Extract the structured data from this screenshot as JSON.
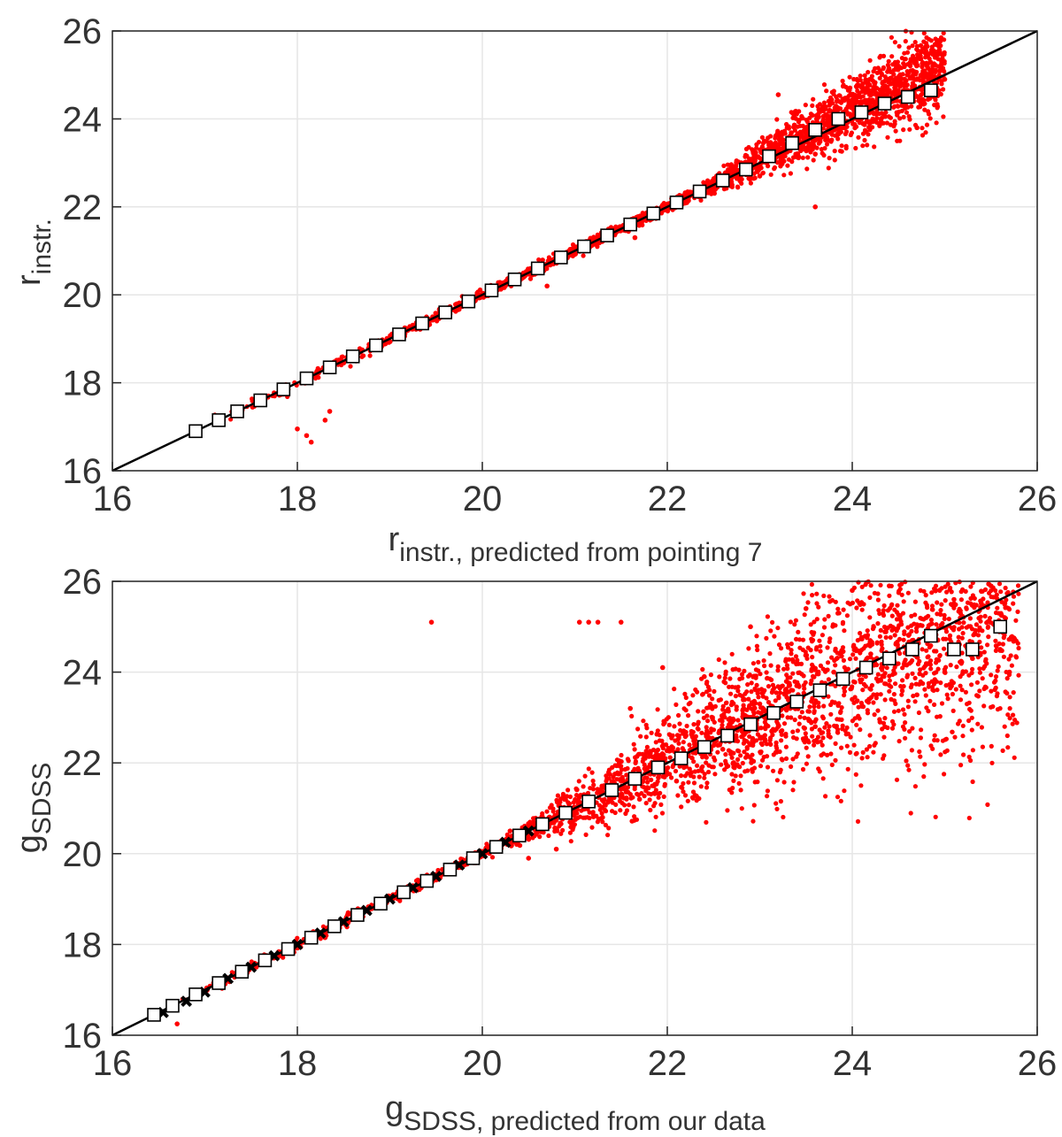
{
  "chart_data": [
    {
      "type": "scatter",
      "xlabel_main": "r",
      "xlabel_sub": "instr., predicted from pointing 7",
      "ylabel_main": "r",
      "ylabel_sub": "instr.",
      "xlim": [
        16,
        26
      ],
      "ylim": [
        16,
        26
      ],
      "xticks": [
        16,
        18,
        20,
        22,
        24,
        26
      ],
      "yticks": [
        16,
        18,
        20,
        22,
        24,
        26
      ],
      "grid": true,
      "reference_line": {
        "from": [
          16,
          16
        ],
        "to": [
          26,
          26
        ],
        "color": "#000000"
      },
      "series": [
        {
          "marker": "dot",
          "color": "#ff0000",
          "points": [
            [
              16.9,
              16.9
            ],
            [
              17.2,
              17.15
            ],
            [
              17.4,
              17.35
            ],
            [
              17.65,
              17.6
            ],
            [
              17.9,
              17.85
            ],
            [
              18.0,
              16.95
            ],
            [
              18.1,
              16.8
            ],
            [
              18.15,
              16.65
            ],
            [
              18.35,
              17.35
            ],
            [
              18.3,
              17.15
            ],
            [
              18.2,
              18.15
            ],
            [
              18.5,
              18.45
            ],
            [
              18.8,
              18.8
            ],
            [
              19.1,
              19.15
            ],
            [
              19.35,
              19.3
            ],
            [
              19.55,
              19.55
            ],
            [
              19.8,
              19.85
            ],
            [
              20.15,
              20.1
            ],
            [
              20.3,
              20.4
            ],
            [
              20.6,
              20.65
            ],
            [
              20.7,
              20.2
            ],
            [
              20.85,
              20.9
            ],
            [
              21.1,
              21.1
            ],
            [
              21.3,
              21.4
            ],
            [
              21.55,
              21.6
            ],
            [
              21.65,
              21.3
            ],
            [
              21.8,
              21.85
            ],
            [
              22.1,
              22.1
            ],
            [
              22.3,
              22.4
            ],
            [
              22.5,
              22.6
            ],
            [
              22.7,
              22.5
            ],
            [
              22.8,
              23.0
            ],
            [
              23.0,
              22.7
            ],
            [
              23.1,
              23.2
            ],
            [
              23.2,
              24.55
            ],
            [
              23.4,
              23.4
            ],
            [
              23.5,
              23.7
            ],
            [
              23.6,
              23.2
            ],
            [
              23.6,
              22.0
            ],
            [
              23.7,
              23.9
            ],
            [
              23.9,
              23.8
            ],
            [
              24.0,
              24.4
            ],
            [
              24.1,
              24.0
            ],
            [
              24.2,
              24.9
            ],
            [
              24.3,
              23.9
            ],
            [
              24.4,
              24.3
            ],
            [
              24.5,
              25.2
            ],
            [
              24.6,
              24.4
            ],
            [
              24.7,
              23.8
            ],
            [
              24.8,
              24.6
            ],
            [
              25.0,
              24.9
            ]
          ]
        },
        {
          "marker": "square",
          "points": [
            [
              16.9,
              16.9
            ],
            [
              17.15,
              17.15
            ],
            [
              17.35,
              17.35
            ],
            [
              17.6,
              17.6
            ],
            [
              17.85,
              17.85
            ],
            [
              18.1,
              18.1
            ],
            [
              18.35,
              18.35
            ],
            [
              18.6,
              18.6
            ],
            [
              18.85,
              18.85
            ],
            [
              19.1,
              19.1
            ],
            [
              19.35,
              19.35
            ],
            [
              19.6,
              19.6
            ],
            [
              19.85,
              19.85
            ],
            [
              20.1,
              20.1
            ],
            [
              20.35,
              20.35
            ],
            [
              20.6,
              20.6
            ],
            [
              20.85,
              20.85
            ],
            [
              21.1,
              21.1
            ],
            [
              21.35,
              21.35
            ],
            [
              21.6,
              21.6
            ],
            [
              21.85,
              21.85
            ],
            [
              22.1,
              22.1
            ],
            [
              22.35,
              22.35
            ],
            [
              22.6,
              22.6
            ],
            [
              22.85,
              22.85
            ],
            [
              23.1,
              23.15
            ],
            [
              23.35,
              23.45
            ],
            [
              23.6,
              23.75
            ],
            [
              23.85,
              24.0
            ],
            [
              24.1,
              24.15
            ],
            [
              24.35,
              24.35
            ],
            [
              24.6,
              24.5
            ],
            [
              24.85,
              24.65
            ]
          ]
        }
      ]
    },
    {
      "type": "scatter",
      "xlabel_main": "g",
      "xlabel_sub": "SDSS, predicted from our data",
      "ylabel_main": "g",
      "ylabel_sub": "SDSS",
      "xlim": [
        16,
        26
      ],
      "ylim": [
        16,
        26
      ],
      "xticks": [
        16,
        18,
        20,
        22,
        24,
        26
      ],
      "yticks": [
        16,
        18,
        20,
        22,
        24,
        26
      ],
      "grid": true,
      "reference_line": {
        "from": [
          16,
          16
        ],
        "to": [
          26,
          26
        ],
        "color": "#000000"
      },
      "series": [
        {
          "marker": "dot",
          "color": "#ff0000",
          "points": [
            [
              16.7,
              16.25
            ],
            [
              17.1,
              17.1
            ],
            [
              17.5,
              17.55
            ],
            [
              18.0,
              18.0
            ],
            [
              18.3,
              18.15
            ],
            [
              18.55,
              18.7
            ],
            [
              18.9,
              18.95
            ],
            [
              19.3,
              19.2
            ],
            [
              19.45,
              25.1
            ],
            [
              19.6,
              19.6
            ],
            [
              19.9,
              19.95
            ],
            [
              20.15,
              20.1
            ],
            [
              20.3,
              20.5
            ],
            [
              20.5,
              19.9
            ],
            [
              20.6,
              20.7
            ],
            [
              20.8,
              20.1
            ],
            [
              20.9,
              20.95
            ],
            [
              21.05,
              25.1
            ],
            [
              21.15,
              25.1
            ],
            [
              21.25,
              25.1
            ],
            [
              21.1,
              21.3
            ],
            [
              21.3,
              20.8
            ],
            [
              21.5,
              21.6
            ],
            [
              21.5,
              25.1
            ],
            [
              21.6,
              23.2
            ],
            [
              21.7,
              21.2
            ],
            [
              21.9,
              22.1
            ],
            [
              21.95,
              24.1
            ],
            [
              22.1,
              21.6
            ],
            [
              22.3,
              22.5
            ],
            [
              22.4,
              23.9
            ],
            [
              22.6,
              22.3
            ],
            [
              22.7,
              22.9
            ],
            [
              22.9,
              22.4
            ],
            [
              22.9,
              25.0
            ],
            [
              23.0,
              23.3
            ],
            [
              23.2,
              22.8
            ],
            [
              23.4,
              23.7
            ],
            [
              23.5,
              25.4
            ],
            [
              23.6,
              22.8
            ],
            [
              23.8,
              24.0
            ],
            [
              24.0,
              25.8
            ],
            [
              24.0,
              23.4
            ],
            [
              24.2,
              24.4
            ],
            [
              24.3,
              22.9
            ],
            [
              24.4,
              25.9
            ],
            [
              24.6,
              24.6
            ],
            [
              24.7,
              23.5
            ],
            [
              24.8,
              25.2
            ],
            [
              25.0,
              24.0
            ],
            [
              25.1,
              25.6
            ],
            [
              25.3,
              24.3
            ],
            [
              25.5,
              25.9
            ],
            [
              25.6,
              24.5
            ],
            [
              25.7,
              24.0
            ]
          ]
        },
        {
          "marker": "x",
          "color": "#000000",
          "points": [
            [
              16.55,
              16.5
            ],
            [
              16.8,
              16.75
            ],
            [
              17.0,
              16.95
            ],
            [
              17.25,
              17.25
            ],
            [
              17.5,
              17.5
            ],
            [
              17.75,
              17.75
            ],
            [
              18.0,
              18.0
            ],
            [
              18.25,
              18.25
            ],
            [
              18.5,
              18.5
            ],
            [
              18.75,
              18.75
            ],
            [
              19.0,
              19.0
            ],
            [
              19.25,
              19.25
            ],
            [
              19.5,
              19.5
            ],
            [
              19.75,
              19.75
            ],
            [
              20.0,
              20.0
            ],
            [
              20.25,
              20.25
            ],
            [
              20.5,
              20.5
            ]
          ]
        },
        {
          "marker": "square",
          "points": [
            [
              16.45,
              16.45
            ],
            [
              16.65,
              16.65
            ],
            [
              16.9,
              16.9
            ],
            [
              17.15,
              17.15
            ],
            [
              17.4,
              17.4
            ],
            [
              17.65,
              17.65
            ],
            [
              17.9,
              17.9
            ],
            [
              18.15,
              18.15
            ],
            [
              18.4,
              18.4
            ],
            [
              18.65,
              18.65
            ],
            [
              18.9,
              18.9
            ],
            [
              19.15,
              19.15
            ],
            [
              19.4,
              19.4
            ],
            [
              19.65,
              19.65
            ],
            [
              19.9,
              19.9
            ],
            [
              20.15,
              20.15
            ],
            [
              20.4,
              20.4
            ],
            [
              20.65,
              20.65
            ],
            [
              20.9,
              20.9
            ],
            [
              21.15,
              21.15
            ],
            [
              21.4,
              21.4
            ],
            [
              21.65,
              21.65
            ],
            [
              21.9,
              21.9
            ],
            [
              22.15,
              22.1
            ],
            [
              22.4,
              22.35
            ],
            [
              22.65,
              22.6
            ],
            [
              22.9,
              22.85
            ],
            [
              23.15,
              23.1
            ],
            [
              23.4,
              23.35
            ],
            [
              23.65,
              23.6
            ],
            [
              23.9,
              23.85
            ],
            [
              24.15,
              24.1
            ],
            [
              24.4,
              24.3
            ],
            [
              24.65,
              24.5
            ],
            [
              24.85,
              24.8
            ],
            [
              25.1,
              24.5
            ],
            [
              25.3,
              24.5
            ],
            [
              25.6,
              25.0
            ]
          ]
        }
      ]
    }
  ]
}
